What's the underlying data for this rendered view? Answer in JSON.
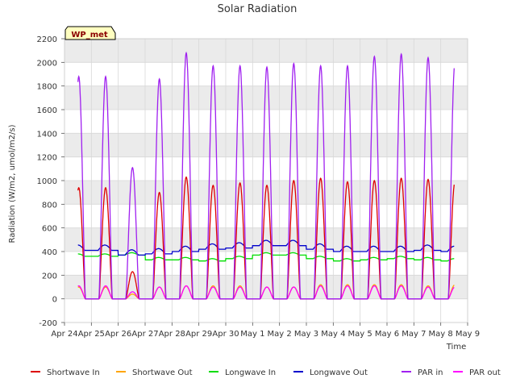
{
  "chart_data": {
    "type": "line",
    "title": "Solar Radiation",
    "xlabel": "Time",
    "ylabel": "Radiation (W/m2, umol/m2/s)",
    "ylim": [
      -200,
      2200
    ],
    "yticks": [
      -200,
      0,
      200,
      400,
      600,
      800,
      1000,
      1200,
      1400,
      1600,
      1800,
      2000,
      2200
    ],
    "xlim": [
      "Apr 24",
      "May 9"
    ],
    "xticks": [
      "Apr 24",
      "Apr 25",
      "Apr 26",
      "Apr 27",
      "Apr 28",
      "Apr 29",
      "Apr 30",
      "May 1",
      "May 2",
      "May 3",
      "May 4",
      "May 5",
      "May 6",
      "May 7",
      "May 8",
      "May 9"
    ],
    "data_start": "Apr 24 12:00",
    "data_end": "May 8 12:00",
    "grid": true,
    "background": "#ebebeb",
    "station_label": "WP_met",
    "legend_position": "bottom",
    "days": [
      "Apr 25",
      "Apr 26",
      "Apr 27",
      "Apr 28",
      "Apr 29",
      "Apr 30",
      "May 1",
      "May 2",
      "May 3",
      "May 4",
      "May 5",
      "May 6",
      "May 7",
      "May 8"
    ],
    "series": [
      {
        "name": "Shortwave In",
        "color": "#dd0000",
        "night_value": 0,
        "daily_peak": [
          940,
          230,
          900,
          1030,
          960,
          980,
          960,
          1000,
          1020,
          990,
          1000,
          1020,
          1010,
          990
        ]
      },
      {
        "name": "Shortwave Out",
        "color": "#ffa500",
        "night_value": 0,
        "daily_peak": [
          100,
          40,
          100,
          110,
          110,
          110,
          100,
          100,
          120,
          120,
          120,
          120,
          110,
          120
        ]
      },
      {
        "name": "Longwave In",
        "color": "#00dd00",
        "daily_mean": [
          360,
          370,
          330,
          330,
          320,
          340,
          370,
          370,
          340,
          320,
          330,
          340,
          330,
          320
        ]
      },
      {
        "name": "Longwave Out",
        "color": "#0000cc",
        "daily_mean": [
          410,
          370,
          380,
          400,
          420,
          430,
          450,
          450,
          420,
          400,
          400,
          400,
          410,
          400
        ]
      },
      {
        "name": "PAR in",
        "color": "#a020f0",
        "night_value": 0,
        "daily_peak": [
          1880,
          1110,
          1860,
          2080,
          1970,
          1970,
          1960,
          1990,
          1970,
          1970,
          2050,
          2070,
          2040,
          2000
        ]
      },
      {
        "name": "PAR out",
        "color": "#ff00ff",
        "night_value": 0,
        "daily_peak": [
          110,
          60,
          100,
          110,
          100,
          100,
          100,
          100,
          110,
          110,
          110,
          110,
          100,
          100
        ]
      }
    ]
  }
}
